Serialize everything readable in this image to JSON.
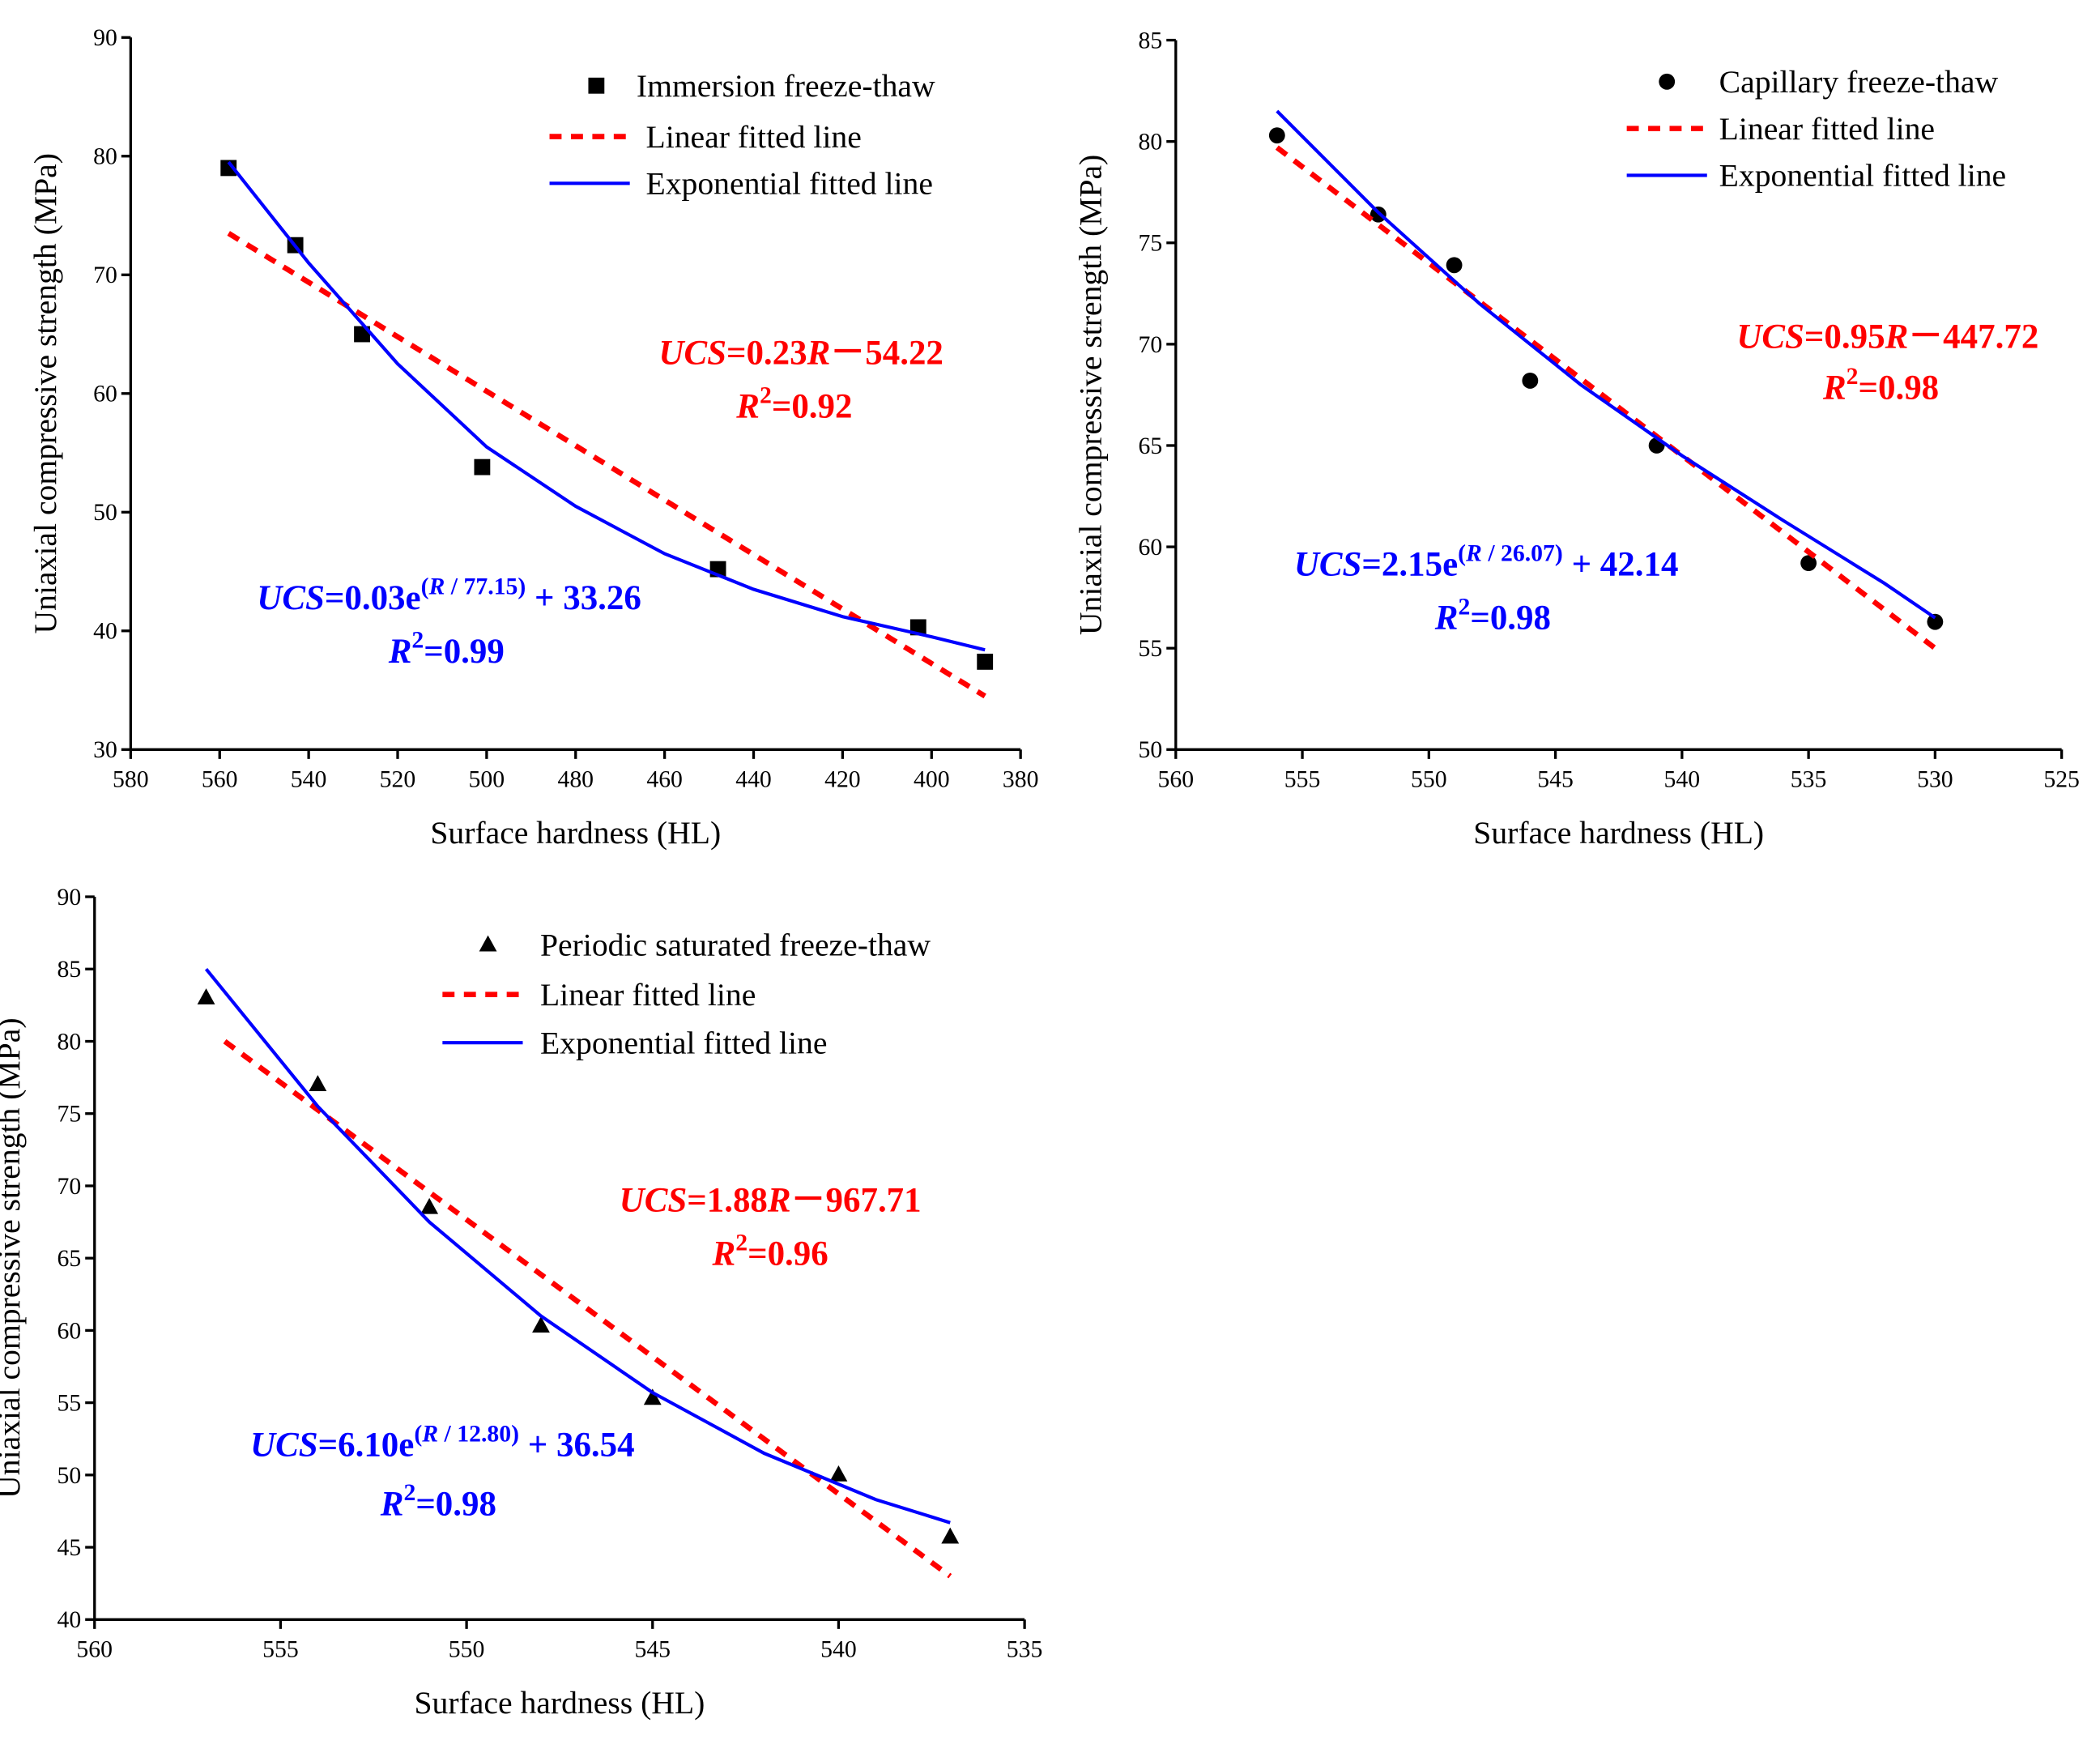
{
  "chart_data": [
    {
      "type": "scatter",
      "x_label": "Surface hardness (HL)",
      "y_label": "Uniaxial compressive strength (MPa)",
      "xlim": [
        580,
        380
      ],
      "xticks": [
        580,
        560,
        540,
        520,
        500,
        480,
        460,
        440,
        420,
        400,
        380
      ],
      "ylim": [
        30,
        90
      ],
      "yticks": [
        30,
        40,
        50,
        60,
        70,
        80,
        90
      ],
      "series": [
        {
          "name": "Immersion freeze-thaw",
          "type": "scatter",
          "marker": "square",
          "color": "#000000",
          "x": [
            558,
            543,
            528,
            501,
            448,
            403,
            388
          ],
          "values": [
            79,
            72.5,
            65,
            53.8,
            45.2,
            40.3,
            37.4
          ]
        },
        {
          "name": "Linear fitted line",
          "type": "line",
          "style": "dashed",
          "color": "#ff0000",
          "x": [
            558,
            388
          ],
          "values": [
            73.5,
            34.5
          ]
        },
        {
          "name": "Exponential fitted line",
          "type": "line",
          "style": "solid",
          "color": "#0000ff",
          "x": [
            558,
            540,
            520,
            500,
            480,
            460,
            440,
            420,
            400,
            388
          ],
          "values": [
            79.5,
            71,
            62.5,
            55.5,
            50.5,
            46.5,
            43.5,
            41.2,
            39.5,
            38.4
          ]
        }
      ],
      "annotations": [
        {
          "color": "#ff0000",
          "runs": [
            {
              "text": "UCS",
              "italic": true
            },
            {
              "text": "=0.23"
            },
            {
              "text": "R",
              "italic": true
            },
            {
              "text": "－54.22"
            }
          ]
        },
        {
          "color": "#ff0000",
          "runs": [
            {
              "text": "R",
              "italic": true
            },
            {
              "text": "2",
              "sup": true
            },
            {
              "text": "=0.92"
            }
          ]
        },
        {
          "color": "#0000ff",
          "runs": [
            {
              "text": "UCS",
              "italic": true
            },
            {
              "text": "=0.03e"
            },
            {
              "text": "(",
              "sup": true
            },
            {
              "text": "R",
              "sup": true,
              "italic": true
            },
            {
              "text": " / 77.15)",
              "sup": true
            },
            {
              "text": " + 33.26"
            }
          ]
        },
        {
          "color": "#0000ff",
          "runs": [
            {
              "text": "R",
              "italic": true
            },
            {
              "text": "2",
              "sup": true
            },
            {
              "text": "=0.99"
            }
          ]
        }
      ]
    },
    {
      "type": "scatter",
      "x_label": "Surface hardness (HL)",
      "y_label": "Uniaxial compressive strength (MPa)",
      "xlim": [
        560,
        525
      ],
      "xticks": [
        560,
        555,
        550,
        545,
        540,
        535,
        530,
        525
      ],
      "ylim": [
        50,
        85
      ],
      "yticks": [
        50,
        55,
        60,
        65,
        70,
        75,
        80,
        85
      ],
      "series": [
        {
          "name": "Capillary freeze-thaw",
          "type": "scatter",
          "marker": "circle",
          "color": "#000000",
          "x": [
            556,
            552,
            549,
            546,
            541,
            535,
            530
          ],
          "values": [
            80.3,
            76.4,
            73.9,
            68.2,
            65,
            59.2,
            56.3
          ]
        },
        {
          "name": "Linear fitted line",
          "type": "line",
          "style": "dashed",
          "color": "#ff0000",
          "x": [
            556,
            530
          ],
          "values": [
            79.7,
            55
          ]
        },
        {
          "name": "Exponential fitted line",
          "type": "line",
          "style": "solid",
          "color": "#0000ff",
          "x": [
            556,
            552,
            548,
            544,
            540,
            536,
            532,
            530
          ],
          "values": [
            81.5,
            76.5,
            72,
            68,
            64.5,
            61.3,
            58.2,
            56.5
          ]
        }
      ],
      "annotations": [
        {
          "color": "#ff0000",
          "runs": [
            {
              "text": "UCS",
              "italic": true
            },
            {
              "text": "=0.95"
            },
            {
              "text": "R",
              "italic": true
            },
            {
              "text": "－447.72"
            }
          ]
        },
        {
          "color": "#ff0000",
          "runs": [
            {
              "text": "R",
              "italic": true
            },
            {
              "text": "2",
              "sup": true
            },
            {
              "text": "=0.98"
            }
          ]
        },
        {
          "color": "#0000ff",
          "runs": [
            {
              "text": "UCS",
              "italic": true
            },
            {
              "text": "=2.15e"
            },
            {
              "text": "(",
              "sup": true
            },
            {
              "text": "R",
              "sup": true,
              "italic": true
            },
            {
              "text": " / 26.07)",
              "sup": true
            },
            {
              "text": " + 42.14"
            }
          ]
        },
        {
          "color": "#0000ff",
          "runs": [
            {
              "text": "R",
              "italic": true
            },
            {
              "text": "2",
              "sup": true
            },
            {
              "text": "=0.98"
            }
          ]
        }
      ]
    },
    {
      "type": "scatter",
      "x_label": "Surface hardness (HL)",
      "y_label": "Uniaxial compressive strength (MPa)",
      "xlim": [
        560,
        535
      ],
      "xticks": [
        560,
        555,
        550,
        545,
        540,
        535
      ],
      "ylim": [
        40,
        90
      ],
      "yticks": [
        40,
        45,
        50,
        55,
        60,
        65,
        70,
        75,
        80,
        85,
        90
      ],
      "series": [
        {
          "name": "Periodic saturated freeze-thaw",
          "type": "scatter",
          "marker": "triangle",
          "color": "#000000",
          "x": [
            557,
            554,
            551,
            548,
            545,
            540,
            537
          ],
          "values": [
            83,
            77,
            68.5,
            60.3,
            55.3,
            50,
            45.7
          ]
        },
        {
          "name": "Linear fitted line",
          "type": "line",
          "style": "dashed",
          "color": "#ff0000",
          "x": [
            556.5,
            537
          ],
          "values": [
            80,
            43
          ]
        },
        {
          "name": "Exponential fitted line",
          "type": "line",
          "style": "solid",
          "color": "#0000ff",
          "x": [
            557,
            554,
            551,
            548,
            545,
            542,
            539,
            537
          ],
          "values": [
            85,
            75.5,
            67.5,
            61,
            55.7,
            51.5,
            48.3,
            46.7
          ]
        }
      ],
      "annotations": [
        {
          "color": "#ff0000",
          "runs": [
            {
              "text": "UCS",
              "italic": true
            },
            {
              "text": "=1.88"
            },
            {
              "text": "R",
              "italic": true
            },
            {
              "text": "－967.71"
            }
          ]
        },
        {
          "color": "#ff0000",
          "runs": [
            {
              "text": "R",
              "italic": true
            },
            {
              "text": "2",
              "sup": true
            },
            {
              "text": "=0.96"
            }
          ]
        },
        {
          "color": "#0000ff",
          "runs": [
            {
              "text": "UCS",
              "italic": true
            },
            {
              "text": "=6.10e"
            },
            {
              "text": "(",
              "sup": true
            },
            {
              "text": "R",
              "sup": true,
              "italic": true
            },
            {
              "text": " / 12.80)",
              "sup": true
            },
            {
              "text": " + 36.54"
            }
          ]
        },
        {
          "color": "#0000ff",
          "runs": [
            {
              "text": "R",
              "italic": true
            },
            {
              "text": "2",
              "sup": true
            },
            {
              "text": "=0.98"
            }
          ]
        }
      ]
    }
  ]
}
